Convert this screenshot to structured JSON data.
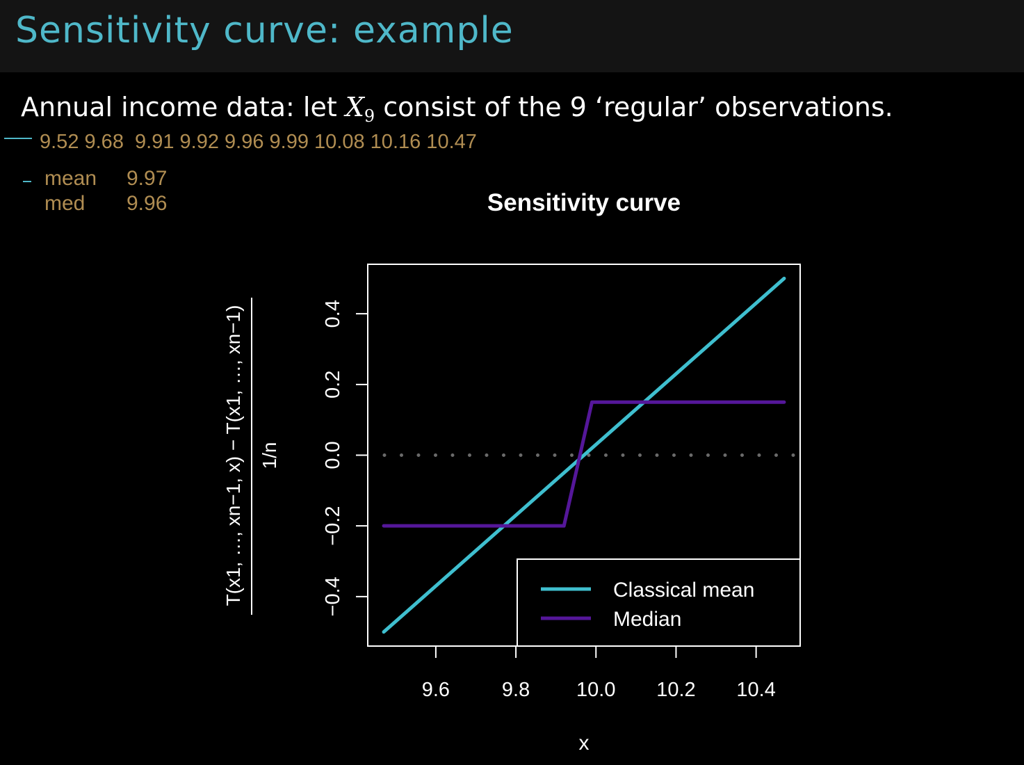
{
  "slide": {
    "title": "Sensitivity curve: example",
    "intro_prefix": "Annual income data: let ",
    "intro_var": "X",
    "intro_sub": "9",
    "intro_suffix": " consist of the 9 ‘regular’ observations.",
    "data_values": "9.52 9.68  9.91 9.92 9.96 9.99 10.08 10.16 10.47",
    "stats": [
      {
        "label": "mean",
        "value": "9.97"
      },
      {
        "label": "med",
        "value": "9.96"
      }
    ]
  },
  "colors": {
    "title": "#4fb8c9",
    "mean_line": "#3fbfcf",
    "median_line": "#55179a",
    "data_text": "#b08d52",
    "background": "#000000"
  },
  "chart_data": {
    "type": "line",
    "title": "Sensitivity curve",
    "xlabel": "x",
    "ylabel_numerator": "T(x1, …, xn−1, x) − T(x1, …, xn−1)",
    "ylabel_denominator": "1/n",
    "xlim": [
      9.43,
      10.51
    ],
    "ylim": [
      -0.54,
      0.54
    ],
    "xticks": [
      "9.6",
      "9.8",
      "10.0",
      "10.2",
      "10.4"
    ],
    "yticks": [
      "−0.4",
      "−0.2",
      "0.0",
      "0.2",
      "0.4"
    ],
    "reference_line": {
      "y": 0,
      "style": "dotted"
    },
    "legend_position": "bottom-right",
    "series": [
      {
        "name": "Classical mean",
        "x": [
          9.47,
          10.47
        ],
        "y": [
          -0.5,
          0.5
        ]
      },
      {
        "name": "Median",
        "x": [
          9.47,
          9.92,
          9.99,
          10.47
        ],
        "y": [
          -0.2,
          -0.2,
          0.15,
          0.15
        ]
      }
    ]
  }
}
